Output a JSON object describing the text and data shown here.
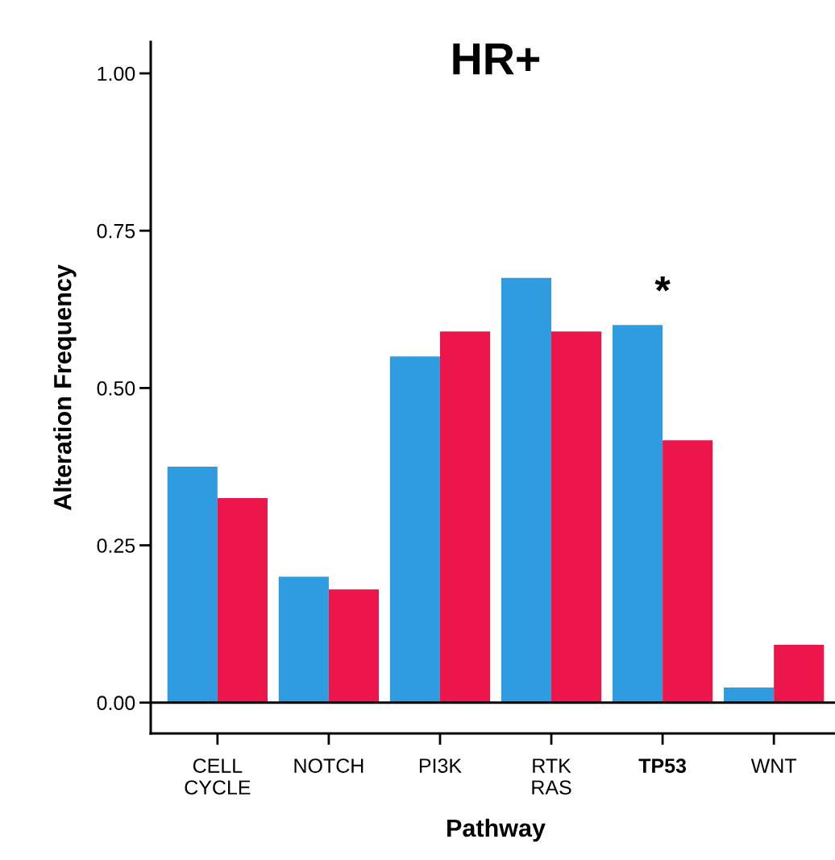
{
  "chart_data": {
    "type": "bar",
    "title": "HR+",
    "xlabel": "Pathway",
    "ylabel": "Alteration Frequency",
    "categories": [
      "CELL\nCYCLE",
      "NOTCH",
      "PI3K",
      "RTK\nRAS",
      "TP53",
      "WNT"
    ],
    "series": [
      {
        "color": "#2e9cdf",
        "values": [
          0.375,
          0.2,
          0.55,
          0.675,
          0.6,
          0.024
        ]
      },
      {
        "color": "#ed164c",
        "values": [
          0.325,
          0.18,
          0.59,
          0.59,
          0.417,
          0.092
        ]
      }
    ],
    "ylim": [
      -0.049,
      1.05
    ],
    "yticks": [
      {
        "value": 0,
        "label": "0.00"
      },
      {
        "value": 0.25,
        "label": "0.25"
      },
      {
        "value": 0.5,
        "label": "0.50"
      },
      {
        "value": 0.75,
        "label": "0.75"
      },
      {
        "value": 1,
        "label": "1.00"
      }
    ],
    "ref_lines": [
      {
        "axis": "y",
        "value": 0,
        "color": "#000000"
      }
    ],
    "annotations": [
      {
        "text": "*",
        "x": "TP53",
        "y": 0.6
      }
    ],
    "grid": false,
    "legend": false
  }
}
